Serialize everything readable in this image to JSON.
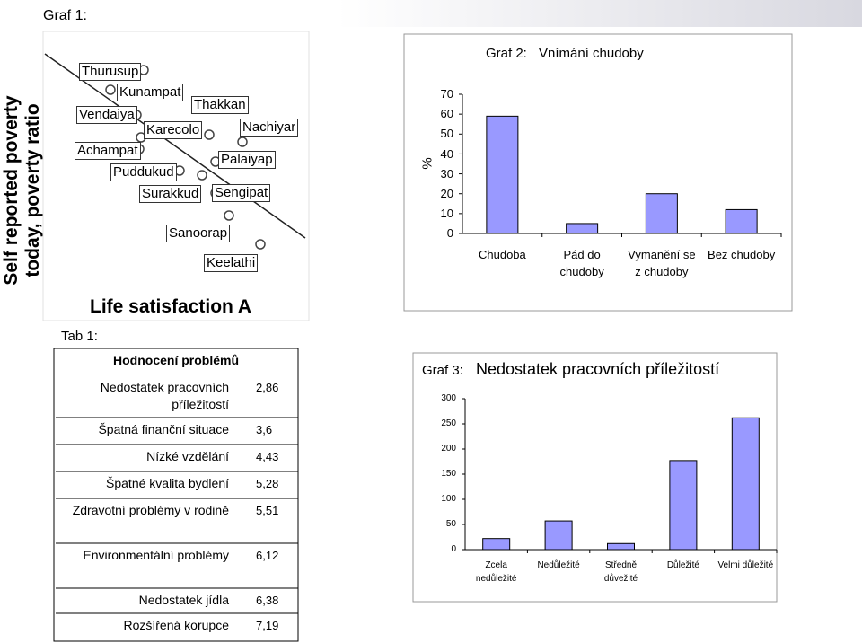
{
  "graf1": {
    "caption": "Graf 1:",
    "y_label": "Self reported poverty today, poverty ratio",
    "x_label": "Life satisfaction A",
    "points": [
      "Thurusup",
      "Kunampat",
      "Thakkan",
      "Vendaiya",
      "Karecolo",
      "Nachiyar",
      "Achampat",
      "Palaiyap",
      "Puddukud",
      "Surakkud",
      "Sengipat",
      "Sanoorap",
      "Keelathi"
    ]
  },
  "chart_data": [
    {
      "type": "bar",
      "label": "Graf 2:",
      "title": "Vnímání chudoby",
      "y_label": "%",
      "categories": [
        "Chudoba",
        "Pád do chudoby",
        "Vymanění se z chudoby",
        "Bez chudoby"
      ],
      "values": [
        59,
        5,
        20,
        12
      ],
      "color": "#9999ff",
      "ylim": [
        0,
        70
      ],
      "yticks": [
        0,
        10,
        20,
        30,
        40,
        50,
        60,
        70
      ]
    },
    {
      "type": "bar",
      "label": "Graf 3:",
      "title": "Nedostatek pracovních příležitostí",
      "categories": [
        "Zcela nedůležité",
        "Nedůležité",
        "Středně důvežité",
        "Důležité",
        "Velmi důležité"
      ],
      "values": [
        22,
        57,
        12,
        177,
        262
      ],
      "color": "#9999ff",
      "ylim": [
        0,
        300
      ],
      "yticks": [
        0,
        50,
        100,
        150,
        200,
        250,
        300
      ]
    }
  ],
  "tab1": {
    "caption": "Tab 1:",
    "header": "Hodnocení problémů",
    "rows": [
      [
        "Nedostatek pracovních příležitostí",
        "2,86"
      ],
      [
        "Špatná finanční situace",
        "3,6"
      ],
      [
        "Nízké vzdělání",
        "4,43"
      ],
      [
        "Špatné kvalita bydlení",
        "5,28"
      ],
      [
        "Zdravotní problémy v rodině",
        "5,51"
      ],
      [
        "Environmentální problémy",
        "6,12"
      ],
      [
        "Nedostatek jídla",
        "6,38"
      ],
      [
        "Rozšířená korupce",
        "7,19"
      ]
    ]
  }
}
